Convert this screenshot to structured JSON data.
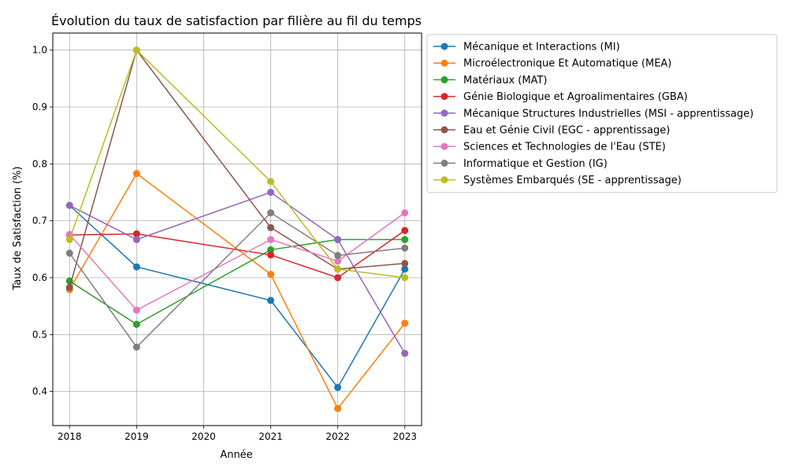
{
  "chart_data": {
    "type": "line",
    "title": "Évolution du taux de satisfaction par filière au fil du temps",
    "xlabel": "Année",
    "ylabel": "Taux de Satisfaction (%)",
    "x": [
      2018,
      2019,
      2021,
      2022,
      2023
    ],
    "x_ticks": [
      2018,
      2019,
      2020,
      2021,
      2022,
      2023
    ],
    "y_ticks": [
      0.4,
      0.5,
      0.6,
      0.7,
      0.8,
      0.9,
      1.0
    ],
    "xlim": [
      2017.75,
      2023.25
    ],
    "ylim": [
      0.34,
      1.03
    ],
    "grid": true,
    "legend_placement": "outside-upper-right",
    "series": [
      {
        "name": "Mécanique et Interactions (MI)",
        "color": "#1f77b4",
        "values": [
          0.727,
          0.619,
          0.56,
          0.407,
          0.615
        ]
      },
      {
        "name": "Microélectronique Et Automatique (MEA)",
        "color": "#ff7f0e",
        "values": [
          0.579,
          0.783,
          0.606,
          0.37,
          0.52
        ]
      },
      {
        "name": "Matériaux (MAT)",
        "color": "#2ca02c",
        "values": [
          0.594,
          0.518,
          0.649,
          0.667,
          0.667
        ]
      },
      {
        "name": "Génie Biologique et Agroalimentaires (GBA)",
        "color": "#d62728",
        "values": [
          0.675,
          0.677,
          0.64,
          0.6,
          0.683
        ]
      },
      {
        "name": "Mécanique Structures Industrielles (MSI - apprentissage)",
        "color": "#9467bd",
        "values": [
          0.727,
          0.667,
          0.75,
          0.667,
          0.467
        ]
      },
      {
        "name": "Eau et Génie Civil (EGC - apprentissage)",
        "color": "#8c564b",
        "values": [
          0.583,
          1.0,
          0.688,
          0.615,
          0.625
        ]
      },
      {
        "name": "Sciences et Technologies de l'Eau (STE)",
        "color": "#e377c2",
        "values": [
          0.676,
          0.543,
          0.667,
          0.629,
          0.714
        ]
      },
      {
        "name": "Informatique et Gestion (IG)",
        "color": "#7f7f7f",
        "values": [
          0.643,
          0.478,
          0.714,
          0.639,
          0.652
        ]
      },
      {
        "name": "Systèmes Embarqués (SE - apprentissage)",
        "color": "#bcbd22",
        "values": [
          0.667,
          1.0,
          0.769,
          0.615,
          0.6
        ]
      }
    ]
  }
}
